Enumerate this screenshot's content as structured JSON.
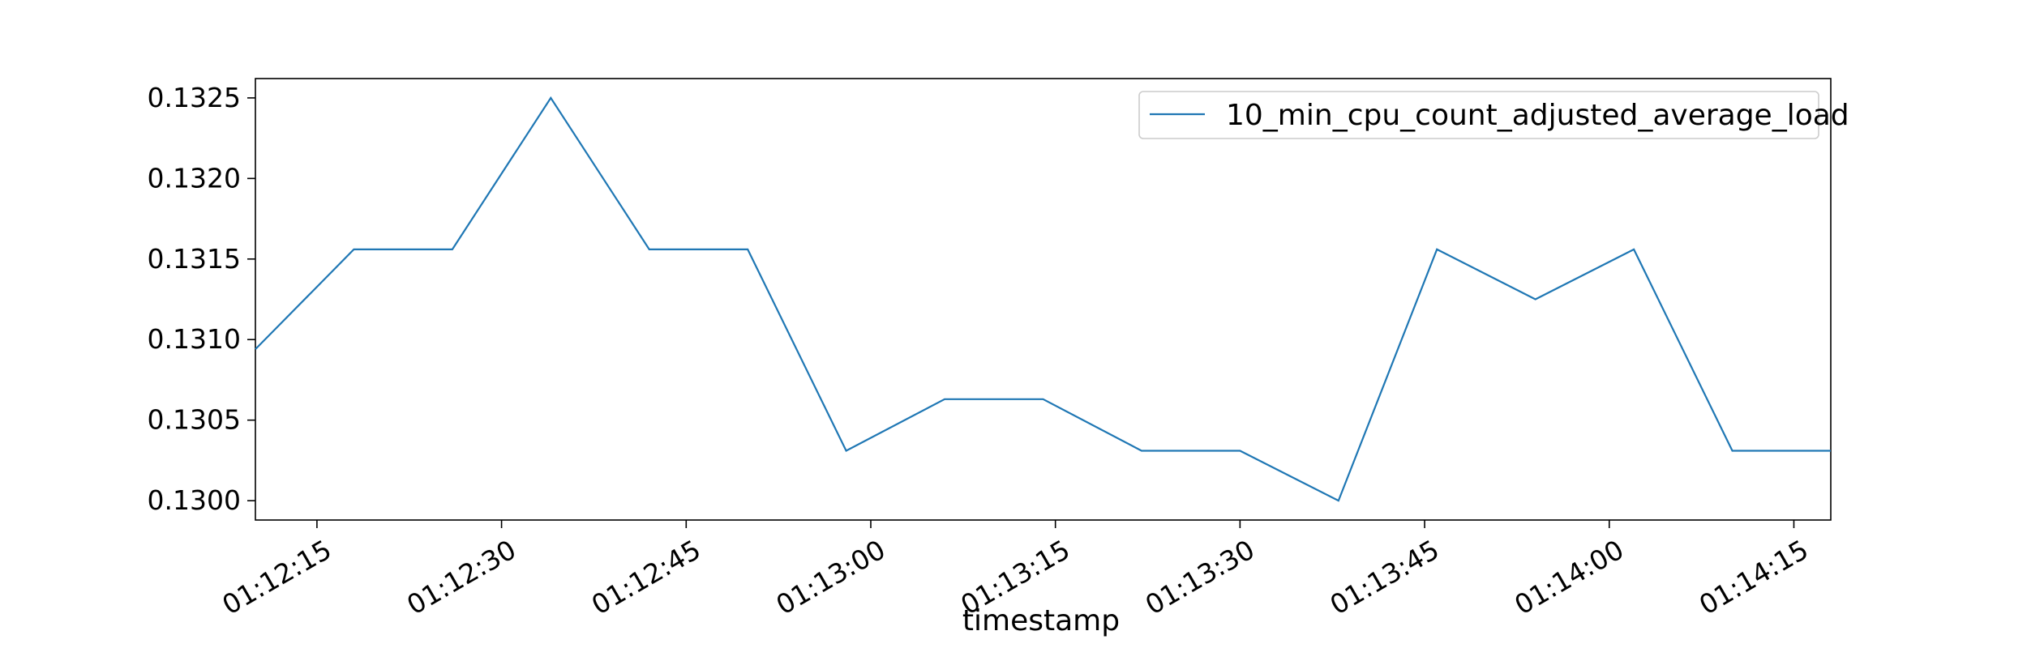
{
  "chart_data": {
    "type": "line",
    "title": "",
    "xlabel": "timestamp",
    "ylabel": "",
    "x": [
      "01:12:10",
      "01:12:18",
      "01:12:26",
      "01:12:34",
      "01:12:42",
      "01:12:50",
      "01:12:58",
      "01:13:06",
      "01:13:14",
      "01:13:22",
      "01:13:30",
      "01:13:38",
      "01:13:46",
      "01:13:54",
      "01:14:02",
      "01:14:10",
      "01:14:18"
    ],
    "series": [
      {
        "name": "10_min_cpu_count_adjusted_average_load",
        "color": "#1f77b4",
        "values": [
          0.13094,
          0.13156,
          0.13156,
          0.1325,
          0.13156,
          0.13156,
          0.13031,
          0.13063,
          0.13063,
          0.13031,
          0.13031,
          0.13,
          0.13156,
          0.13125,
          0.13156,
          0.13031,
          0.13031
        ]
      }
    ],
    "x_ticks": [
      "01:12:15",
      "01:12:30",
      "01:12:45",
      "01:13:00",
      "01:13:15",
      "01:13:30",
      "01:13:45",
      "01:14:00",
      "01:14:15"
    ],
    "y_ticks": [
      "0.1300",
      "0.1305",
      "0.1310",
      "0.1315",
      "0.1320",
      "0.1325"
    ],
    "xlim": [
      "01:12:10",
      "01:14:18"
    ],
    "ylim": [
      0.12988,
      0.13262
    ],
    "grid": false,
    "legend": "top-right"
  }
}
